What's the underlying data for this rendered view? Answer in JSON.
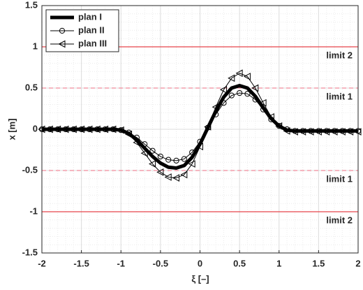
{
  "chart_data": {
    "type": "line",
    "xlabel": "ξ [–]",
    "ylabel": "x [m]",
    "x": [
      -2,
      -1.9,
      -1.8,
      -1.7,
      -1.6,
      -1.5,
      -1.4,
      -1.3,
      -1.2,
      -1.1,
      -1,
      -0.9,
      -0.8,
      -0.7,
      -0.6,
      -0.5,
      -0.4,
      -0.3,
      -0.2,
      -0.1,
      0,
      0.1,
      0.2,
      0.3,
      0.4,
      0.5,
      0.6,
      0.7,
      0.8,
      0.9,
      1,
      1.1,
      1.2,
      1.3,
      1.4,
      1.5,
      1.6,
      1.7,
      1.8,
      1.9,
      2
    ],
    "series": [
      {
        "name": "plan I",
        "color": "#000000",
        "marker": "none",
        "values": [
          0,
          0,
          0,
          0,
          0,
          0,
          0,
          0,
          0,
          0,
          -0.01,
          -0.05,
          -0.13,
          -0.23,
          -0.33,
          -0.41,
          -0.46,
          -0.47,
          -0.44,
          -0.34,
          -0.18,
          0.02,
          0.22,
          0.39,
          0.5,
          0.53,
          0.5,
          0.4,
          0.26,
          0.13,
          0.04,
          -0.01,
          -0.02,
          -0.02,
          -0.02,
          -0.02,
          -0.02,
          -0.02,
          -0.02,
          -0.02,
          -0.02
        ]
      },
      {
        "name": "plan II",
        "color": "#000000",
        "marker": "circle",
        "values": [
          0,
          0,
          0,
          0,
          0,
          0,
          0,
          0,
          0,
          0,
          -0.01,
          -0.04,
          -0.1,
          -0.18,
          -0.26,
          -0.33,
          -0.37,
          -0.38,
          -0.36,
          -0.28,
          -0.15,
          0.02,
          0.18,
          0.32,
          0.41,
          0.44,
          0.43,
          0.36,
          0.24,
          0.12,
          0.04,
          0,
          -0.02,
          -0.02,
          -0.02,
          -0.02,
          -0.02,
          -0.02,
          -0.02,
          -0.02,
          -0.02
        ]
      },
      {
        "name": "plan III",
        "color": "#000000",
        "marker": "triangle-left",
        "values": [
          0,
          0,
          0,
          0,
          0,
          0,
          0,
          0,
          0,
          0,
          -0.01,
          -0.06,
          -0.16,
          -0.29,
          -0.42,
          -0.52,
          -0.58,
          -0.59,
          -0.55,
          -0.42,
          -0.21,
          0.03,
          0.27,
          0.48,
          0.62,
          0.68,
          0.64,
          0.5,
          0.32,
          0.15,
          0.04,
          -0.02,
          -0.03,
          -0.03,
          -0.03,
          -0.03,
          -0.03,
          -0.03,
          -0.03,
          -0.03,
          -0.03
        ]
      }
    ],
    "limits": [
      {
        "value": 1,
        "label": "limit 2",
        "style": "solid",
        "color": "#e8454a"
      },
      {
        "value": 0.5,
        "label": "limit 1",
        "style": "dashed",
        "color": "#f08a9a"
      },
      {
        "value": -0.5,
        "label": "limit 1",
        "style": "dashed",
        "color": "#f08a9a"
      },
      {
        "value": -1,
        "label": "limit 2",
        "style": "solid",
        "color": "#e8454a"
      }
    ],
    "xlim": [
      -2,
      2
    ],
    "xticks": [
      -2,
      -1.5,
      -1,
      -0.5,
      0,
      0.5,
      1,
      1.5,
      2
    ],
    "ylim": [
      -1.5,
      1.5
    ],
    "yticks": [
      -1.5,
      -1,
      -0.5,
      0,
      0.5,
      1,
      1.5
    ],
    "grid": true,
    "minor_grid": true,
    "legend": "upper left"
  }
}
